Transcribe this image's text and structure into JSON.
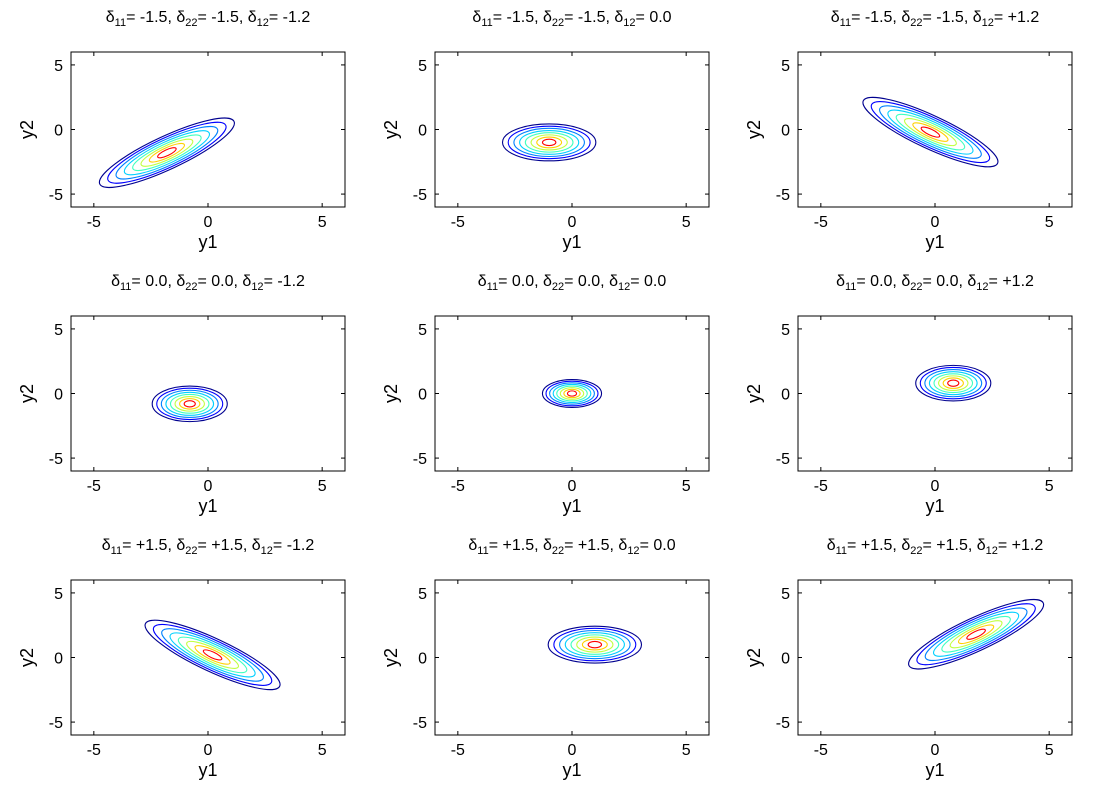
{
  "chart_data": {
    "type": "contour",
    "layout": "3x3 grid",
    "level_colors": [
      "#00008f",
      "#0000ff",
      "#0080ff",
      "#00d0ff",
      "#40ffc0",
      "#c0ff40",
      "#ffd000",
      "#ff6000",
      "#ff0000",
      "#800000"
    ],
    "panels": [
      {
        "title_parts": [
          {
            "t": "δ"
          },
          {
            "t": "11",
            "sub": true
          },
          {
            "t": "= -1.5, δ"
          },
          {
            "t": "22",
            "sub": true
          },
          {
            "t": "= -1.5, δ"
          },
          {
            "t": "12",
            "sub": true
          },
          {
            "t": "= -1.2"
          }
        ],
        "xlabel": "y1",
        "ylabel": "y2",
        "xlim": [
          -6,
          6
        ],
        "ylim": [
          -6,
          6
        ],
        "xticks": [
          "-5",
          "0",
          "5"
        ],
        "yticks": [
          "5",
          "0",
          "-5"
        ],
        "center": [
          -1.8,
          -1.8
        ],
        "angle_deg": 25,
        "semi_axes": [
          6.4,
          2.4
        ],
        "levels": 8
      },
      {
        "title_parts": [
          {
            "t": "δ"
          },
          {
            "t": "11",
            "sub": true
          },
          {
            "t": "= -1.5, δ"
          },
          {
            "t": "22",
            "sub": true
          },
          {
            "t": "= -1.5, δ"
          },
          {
            "t": "12",
            "sub": true
          },
          {
            "t": "= 0.0"
          }
        ],
        "xlabel": "y1",
        "ylabel": "y2",
        "xlim": [
          -6,
          6
        ],
        "ylim": [
          -6,
          6
        ],
        "xticks": [
          "-5",
          "0",
          "5"
        ],
        "yticks": [
          "5",
          "0",
          "-5"
        ],
        "center": [
          -1.0,
          -1.0
        ],
        "angle_deg": 0,
        "semi_axes": [
          4.0,
          2.7
        ],
        "levels": 8
      },
      {
        "title_parts": [
          {
            "t": "δ"
          },
          {
            "t": "11",
            "sub": true
          },
          {
            "t": "= -1.5, δ"
          },
          {
            "t": "22",
            "sub": true
          },
          {
            "t": "= -1.5, δ"
          },
          {
            "t": "12",
            "sub": true
          },
          {
            "t": "= +1.2"
          }
        ],
        "xlabel": "y1",
        "ylabel": "y2",
        "xlim": [
          -6,
          6
        ],
        "ylim": [
          -6,
          6
        ],
        "xticks": [
          "-5",
          "0",
          "5"
        ],
        "yticks": [
          "5",
          "0",
          "-5"
        ],
        "center": [
          -0.2,
          -0.2
        ],
        "angle_deg": -25,
        "semi_axes": [
          6.4,
          2.4
        ],
        "levels": 8
      },
      {
        "title_parts": [
          {
            "t": "δ"
          },
          {
            "t": "11",
            "sub": true
          },
          {
            "t": "= 0.0, δ"
          },
          {
            "t": "22",
            "sub": true
          },
          {
            "t": "= 0.0, δ"
          },
          {
            "t": "12",
            "sub": true
          },
          {
            "t": "= -1.2"
          }
        ],
        "xlabel": "y1",
        "ylabel": "y2",
        "xlim": [
          -6,
          6
        ],
        "ylim": [
          -6,
          6
        ],
        "xticks": [
          "-5",
          "0",
          "5"
        ],
        "yticks": [
          "5",
          "0",
          "-5"
        ],
        "center": [
          -0.8,
          -0.8
        ],
        "angle_deg": 0,
        "semi_axes": [
          3.2,
          2.6
        ],
        "levels": 8
      },
      {
        "title_parts": [
          {
            "t": "δ"
          },
          {
            "t": "11",
            "sub": true
          },
          {
            "t": "= 0.0, δ"
          },
          {
            "t": "22",
            "sub": true
          },
          {
            "t": "= 0.0, δ"
          },
          {
            "t": "12",
            "sub": true
          },
          {
            "t": "= 0.0"
          }
        ],
        "xlabel": "y1",
        "ylabel": "y2",
        "xlim": [
          -6,
          6
        ],
        "ylim": [
          -6,
          6
        ],
        "xticks": [
          "-5",
          "0",
          "5"
        ],
        "yticks": [
          "5",
          "0",
          "-5"
        ],
        "center": [
          0.0,
          0.0
        ],
        "angle_deg": 0,
        "semi_axes": [
          2.5,
          2.0
        ],
        "levels": 8
      },
      {
        "title_parts": [
          {
            "t": "δ"
          },
          {
            "t": "11",
            "sub": true
          },
          {
            "t": "= 0.0, δ"
          },
          {
            "t": "22",
            "sub": true
          },
          {
            "t": "= 0.0, δ"
          },
          {
            "t": "12",
            "sub": true
          },
          {
            "t": "= +1.2"
          }
        ],
        "xlabel": "y1",
        "ylabel": "y2",
        "xlim": [
          -6,
          6
        ],
        "ylim": [
          -6,
          6
        ],
        "xticks": [
          "-5",
          "0",
          "5"
        ],
        "yticks": [
          "5",
          "0",
          "-5"
        ],
        "center": [
          0.8,
          0.8
        ],
        "angle_deg": 0,
        "semi_axes": [
          3.2,
          2.6
        ],
        "levels": 8
      },
      {
        "title_parts": [
          {
            "t": "δ"
          },
          {
            "t": "11",
            "sub": true
          },
          {
            "t": "= +1.5, δ"
          },
          {
            "t": "22",
            "sub": true
          },
          {
            "t": "= +1.5, δ"
          },
          {
            "t": "12",
            "sub": true
          },
          {
            "t": "= -1.2"
          }
        ],
        "xlabel": "y1",
        "ylabel": "y2",
        "xlim": [
          -6,
          6
        ],
        "ylim": [
          -6,
          6
        ],
        "xticks": [
          "-5",
          "0",
          "5"
        ],
        "yticks": [
          "5",
          "0",
          "-5"
        ],
        "center": [
          0.2,
          0.2
        ],
        "angle_deg": -25,
        "semi_axes": [
          6.4,
          2.4
        ],
        "levels": 8
      },
      {
        "title_parts": [
          {
            "t": "δ"
          },
          {
            "t": "11",
            "sub": true
          },
          {
            "t": "= +1.5, δ"
          },
          {
            "t": "22",
            "sub": true
          },
          {
            "t": "= +1.5, δ"
          },
          {
            "t": "12",
            "sub": true
          },
          {
            "t": "= 0.0"
          }
        ],
        "xlabel": "y1",
        "ylabel": "y2",
        "xlim": [
          -6,
          6
        ],
        "ylim": [
          -6,
          6
        ],
        "xticks": [
          "-5",
          "0",
          "5"
        ],
        "yticks": [
          "5",
          "0",
          "-5"
        ],
        "center": [
          1.0,
          1.0
        ],
        "angle_deg": 0,
        "semi_axes": [
          4.0,
          2.7
        ],
        "levels": 8
      },
      {
        "title_parts": [
          {
            "t": "δ"
          },
          {
            "t": "11",
            "sub": true
          },
          {
            "t": "= +1.5, δ"
          },
          {
            "t": "22",
            "sub": true
          },
          {
            "t": "= +1.5, δ"
          },
          {
            "t": "12",
            "sub": true
          },
          {
            "t": "= +1.2"
          }
        ],
        "xlabel": "y1",
        "ylabel": "y2",
        "xlim": [
          -6,
          6
        ],
        "ylim": [
          -6,
          6
        ],
        "xticks": [
          "-5",
          "0",
          "5"
        ],
        "yticks": [
          "5",
          "0",
          "-5"
        ],
        "center": [
          1.8,
          1.8
        ],
        "angle_deg": 25,
        "semi_axes": [
          6.4,
          2.4
        ],
        "levels": 8
      }
    ]
  }
}
